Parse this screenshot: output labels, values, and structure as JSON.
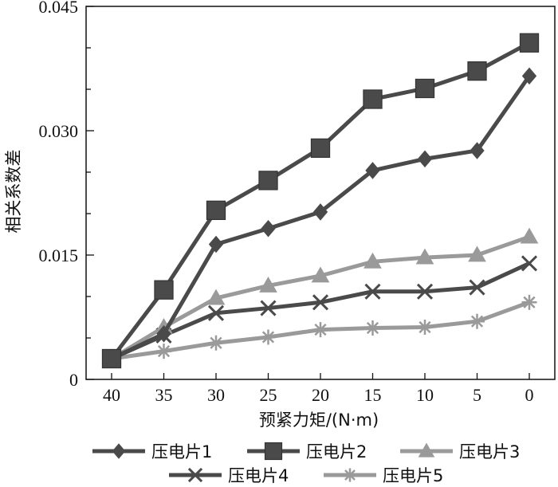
{
  "chart_data": {
    "type": "line",
    "title": "",
    "xlabel": "预紧力矩/(N·m)",
    "ylabel": "相关系数差",
    "categories": [
      "40",
      "35",
      "30",
      "25",
      "20",
      "15",
      "10",
      "5",
      "0"
    ],
    "ylim": [
      0,
      0.045
    ],
    "yticks": [
      "0",
      "0.015",
      "0.030",
      "0.045"
    ],
    "grid": false,
    "legend_position": "bottom",
    "series": [
      {
        "name": "压电片1",
        "marker": "diamond",
        "color": "#4a4a4a",
        "values": [
          0.0025,
          0.0055,
          0.0163,
          0.0182,
          0.0202,
          0.0252,
          0.0266,
          0.0276,
          0.0366
        ]
      },
      {
        "name": "压电片2",
        "marker": "square",
        "color": "#4a4a4a",
        "values": [
          0.0025,
          0.0108,
          0.0204,
          0.024,
          0.0279,
          0.0338,
          0.0351,
          0.0372,
          0.0406
        ]
      },
      {
        "name": "压电片3",
        "marker": "triangle",
        "color": "#9a9a9a",
        "values": [
          0.0025,
          0.0063,
          0.0098,
          0.0113,
          0.0125,
          0.0142,
          0.0147,
          0.015,
          0.0172
        ]
      },
      {
        "name": "压电片4",
        "marker": "x",
        "color": "#4a4a4a",
        "values": [
          0.0025,
          0.0053,
          0.008,
          0.0086,
          0.0093,
          0.0106,
          0.0106,
          0.0111,
          0.014
        ]
      },
      {
        "name": "压电片5",
        "marker": "asterisk",
        "color": "#9a9a9a",
        "values": [
          0.0025,
          0.0034,
          0.0044,
          0.0051,
          0.006,
          0.0062,
          0.0063,
          0.007,
          0.0093
        ]
      }
    ]
  }
}
